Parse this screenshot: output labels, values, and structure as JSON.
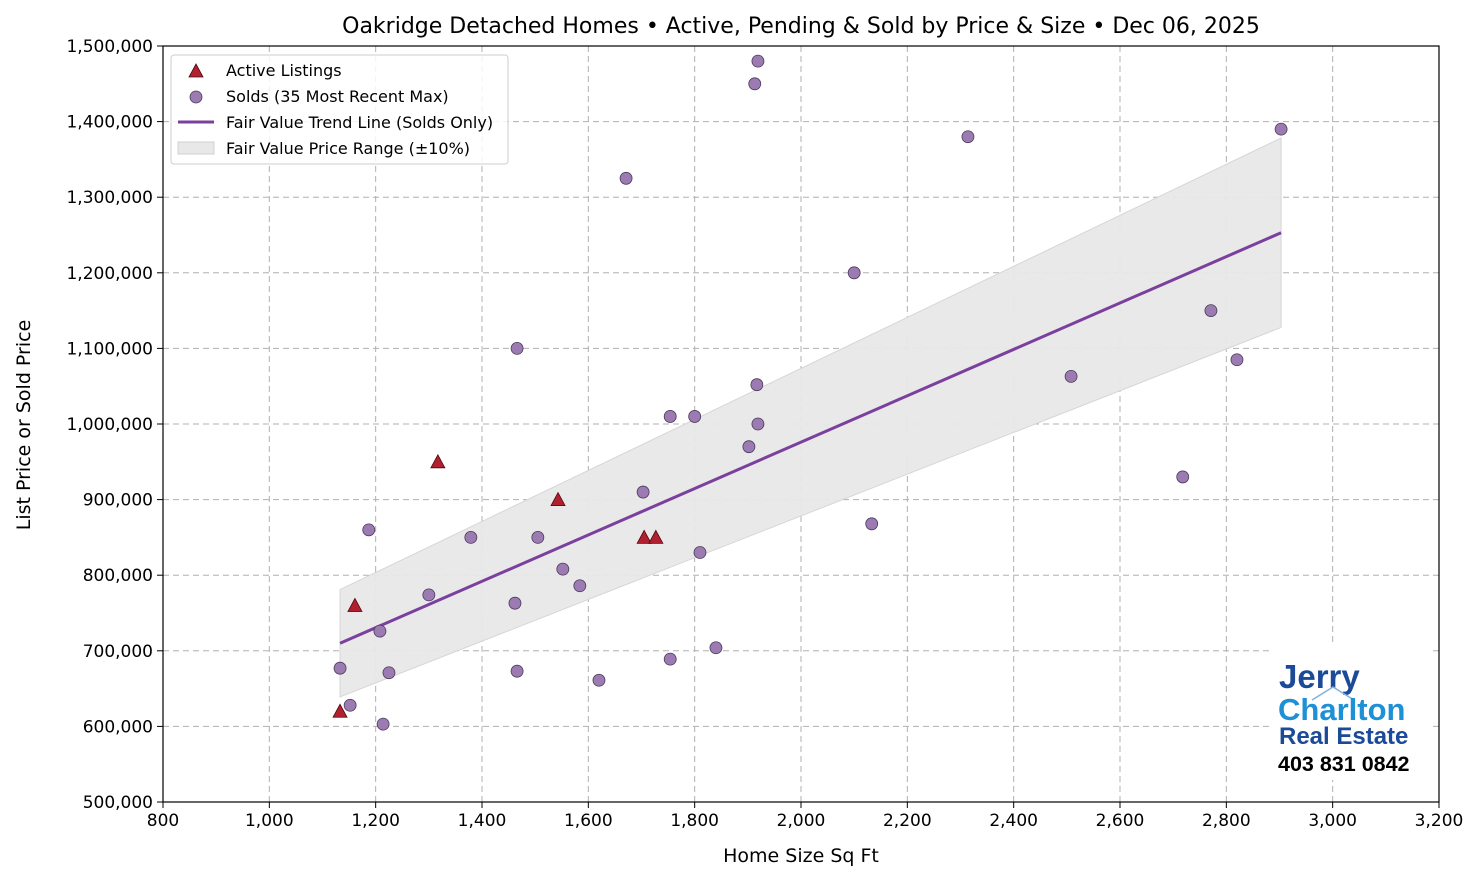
{
  "chart_data": {
    "type": "scatter",
    "title": "Oakridge Detached Homes • Active, Pending & Sold by Price & Size • Dec 06, 2025",
    "xlabel": "Home Size Sq Ft",
    "ylabel": "List Price or Sold Price",
    "xlim": [
      800,
      3200
    ],
    "ylim": [
      500000,
      1500000
    ],
    "x_ticks": [
      800,
      1000,
      1200,
      1400,
      1600,
      1800,
      2000,
      2200,
      2400,
      2600,
      2800,
      3000,
      3200
    ],
    "x_tick_labels": [
      "800",
      "1,000",
      "1,200",
      "1,400",
      "1,600",
      "1,800",
      "2,000",
      "2,200",
      "2,400",
      "2,600",
      "2,800",
      "3,000",
      "3,200"
    ],
    "y_ticks": [
      500000,
      600000,
      700000,
      800000,
      900000,
      1000000,
      1100000,
      1200000,
      1300000,
      1400000,
      1500000
    ],
    "y_tick_labels": [
      "500,000",
      "600,000",
      "700,000",
      "800,000",
      "900,000",
      "1,000,000",
      "1,100,000",
      "1,200,000",
      "1,300,000",
      "1,400,000",
      "1,500,000"
    ],
    "grid": true,
    "legend_placement": "top-left",
    "series": [
      {
        "name": "Active Listings",
        "marker": "triangle",
        "color": "#b22030",
        "points": [
          [
            1133,
            620000
          ],
          [
            1161,
            760000
          ],
          [
            1317,
            950000
          ],
          [
            1543,
            900000
          ],
          [
            1705,
            850000
          ],
          [
            1727,
            850000
          ]
        ]
      },
      {
        "name": "Solds (35 Most Recent Max)",
        "marker": "circle",
        "color": "#9c7bb3",
        "points": [
          [
            1919,
            1480000
          ],
          [
            1913,
            1450000
          ],
          [
            1671,
            1325000
          ],
          [
            2314,
            1380000
          ],
          [
            2903,
            1390000
          ],
          [
            2100,
            1200000
          ],
          [
            2771,
            1150000
          ],
          [
            2820,
            1085000
          ],
          [
            2508,
            1063000
          ],
          [
            1466,
            1100000
          ],
          [
            1917,
            1052000
          ],
          [
            1754,
            1010000
          ],
          [
            1800,
            1010000
          ],
          [
            1919,
            1000000
          ],
          [
            1902,
            970000
          ],
          [
            2718,
            930000
          ],
          [
            1703,
            910000
          ],
          [
            2133,
            868000
          ],
          [
            1187,
            860000
          ],
          [
            1379,
            850000
          ],
          [
            1505,
            850000
          ],
          [
            1810,
            830000
          ],
          [
            1552,
            808000
          ],
          [
            1584,
            786000
          ],
          [
            1300,
            774000
          ],
          [
            1462,
            763000
          ],
          [
            1208,
            726000
          ],
          [
            1840,
            704000
          ],
          [
            1754,
            689000
          ],
          [
            1133,
            677000
          ],
          [
            1466,
            673000
          ],
          [
            1225,
            671000
          ],
          [
            1620,
            661000
          ],
          [
            1152,
            628000
          ],
          [
            1214,
            603000
          ]
        ]
      },
      {
        "name": "Fair Value Trend Line (Solds Only)",
        "type": "line",
        "color": "#7b3f9e",
        "points": [
          [
            1133,
            710000
          ],
          [
            2903,
            1253000
          ]
        ]
      },
      {
        "name": "Fair Value Price Range (±10%)",
        "type": "band",
        "color": "#e8e8e8",
        "band_pct": 10
      }
    ]
  },
  "logo": {
    "line1": "Jerry",
    "line2": "Charlton",
    "line3": "Real Estate",
    "phone": "403 831 0842"
  }
}
